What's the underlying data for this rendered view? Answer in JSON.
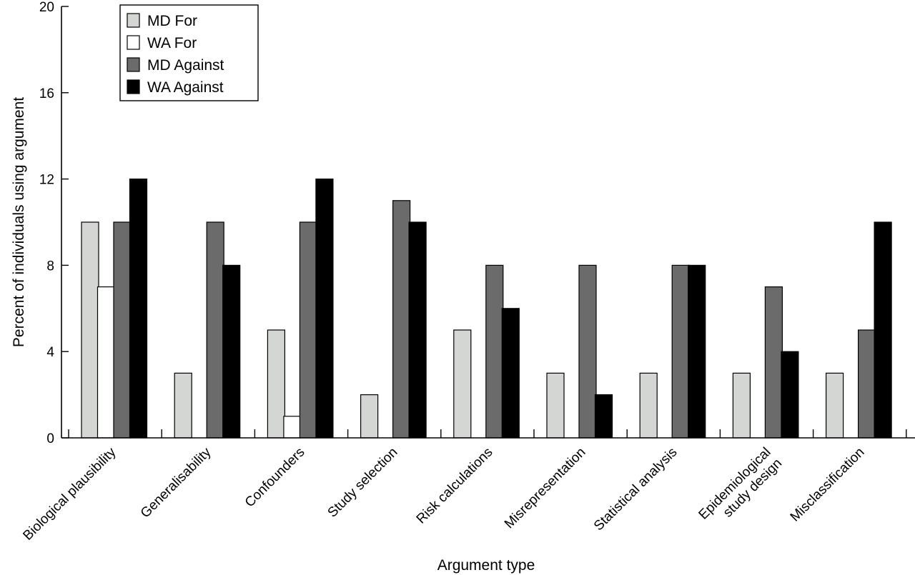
{
  "chart_data": {
    "type": "bar",
    "xlabel": "Argument type",
    "ylabel": "Percent of individuals using argument",
    "ylim": [
      0,
      20
    ],
    "yticks": [
      "0",
      "4",
      "8",
      "12",
      "16",
      "20"
    ],
    "grid": false,
    "legend_position": "top-left",
    "categories": [
      [
        "Biological plausibility"
      ],
      [
        "Generalisability"
      ],
      [
        "Confounders"
      ],
      [
        "Study selection"
      ],
      [
        "Risk calculations"
      ],
      [
        "Misrepresentation"
      ],
      [
        "Statistical analysis"
      ],
      [
        "Epidemiological",
        "study design"
      ],
      [
        "Misclassification"
      ]
    ],
    "series": [
      {
        "name": "MD For",
        "color": "#d4d6d4",
        "values": [
          10,
          3,
          5,
          2,
          5,
          3,
          3,
          3,
          3
        ]
      },
      {
        "name": "WA For",
        "color": "#ffffff",
        "values": [
          7,
          0,
          1,
          0,
          0,
          0,
          0,
          0,
          0
        ]
      },
      {
        "name": "MD Against",
        "color": "#6b6b6b",
        "values": [
          10,
          10,
          10,
          11,
          8,
          8,
          8,
          7,
          5
        ]
      },
      {
        "name": "WA Against",
        "color": "#000000",
        "values": [
          12,
          8,
          12,
          10,
          6,
          2,
          8,
          4,
          10
        ]
      }
    ]
  }
}
